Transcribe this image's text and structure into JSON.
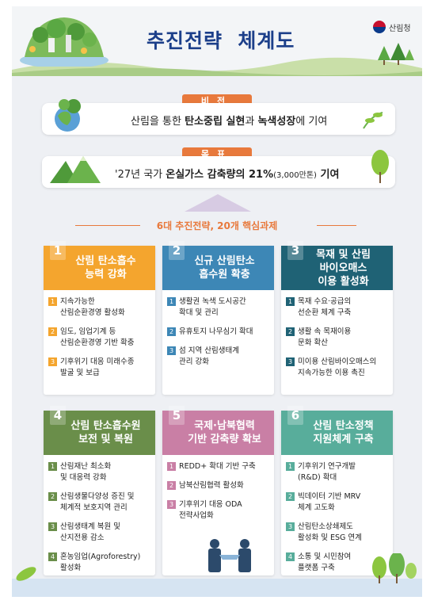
{
  "header": {
    "title": "추진전략  체계도",
    "logo_text": "산림청"
  },
  "vision": {
    "tag": "비전",
    "pre": "산림을 통한 ",
    "bold1": "탄소중립 실현",
    "mid": "과 ",
    "bold2": "녹색성장",
    "post": "에 기여"
  },
  "goal": {
    "tag": "목표",
    "pre": "'27년 국가 ",
    "bold1": "온실가스 감축량의 21%",
    "small": "(3,000만톤)",
    "bold2": " 기여"
  },
  "strategy_header": "6대 추진전략, 20개 핵심과제",
  "colors": {
    "orange": "#f4a52e",
    "blue": "#3d87b6",
    "teal": "#1f6275",
    "green": "#6a8e4a",
    "pink": "#c97fa5",
    "aqua": "#58ad9b",
    "accent": "#e8793c",
    "title": "#1c3f8a"
  },
  "strategies": [
    {
      "num": "1",
      "title": "산림 탄소흡수\n능력 강화",
      "color": "#f4a52e",
      "items": [
        {
          "n": "1",
          "text": "지속가능한\n산림순환경영 활성화"
        },
        {
          "n": "2",
          "text": "임도, 임업기계 등\n산림순환경영 기반 확충"
        },
        {
          "n": "3",
          "text": "기후위기 대응 미래수종\n발굴 및 보급"
        }
      ]
    },
    {
      "num": "2",
      "title": "신규 산림탄소\n흡수원 확충",
      "color": "#3d87b6",
      "items": [
        {
          "n": "1",
          "text": "생활권 녹색 도시공간\n확대 및 관리"
        },
        {
          "n": "2",
          "text": "유휴토지 나무심기 확대"
        },
        {
          "n": "3",
          "text": "섬 지역 산림생태계\n관리 강화"
        }
      ]
    },
    {
      "num": "3",
      "title": "목재 및 산림\n바이오매스\n이용 활성화",
      "color": "#1f6275",
      "items": [
        {
          "n": "1",
          "text": "목재 수요·공급의\n선순환 체계 구축"
        },
        {
          "n": "2",
          "text": "생활 속 목재이용\n문화 확산"
        },
        {
          "n": "3",
          "text": "미이용 산림바이오매스의\n지속가능한 이용 촉진"
        }
      ]
    },
    {
      "num": "4",
      "title": "산림 탄소흡수원\n보전 및 복원",
      "color": "#6a8e4a",
      "items": [
        {
          "n": "1",
          "text": "산림재난 최소화\n및 대응력 강화"
        },
        {
          "n": "2",
          "text": "산림생물다양성 증진 및\n체계적 보호지역 관리"
        },
        {
          "n": "3",
          "text": "산림생태계 복원 및\n산지전용 감소"
        },
        {
          "n": "4",
          "text": "혼농임업(Agroforestry)\n활성화"
        }
      ]
    },
    {
      "num": "5",
      "title": "국제·남북협력\n기반 감축량 확보",
      "color": "#c97fa5",
      "items": [
        {
          "n": "1",
          "text": "REDD+ 확대 기반 구축"
        },
        {
          "n": "2",
          "text": "남북산림협력 활성화"
        },
        {
          "n": "3",
          "text": "기후위기 대응 ODA\n전략사업화"
        }
      ]
    },
    {
      "num": "6",
      "title": "산림 탄소정책\n지원체계 구축",
      "color": "#58ad9b",
      "items": [
        {
          "n": "1",
          "text": "기후위기 연구개발\n(R&D) 확대"
        },
        {
          "n": "2",
          "text": "빅데이터 기반 MRV\n체계 고도화"
        },
        {
          "n": "3",
          "text": "산림탄소상쇄제도\n활성화 및 ESG 연계"
        },
        {
          "n": "4",
          "text": "소통 및 시민참여\n플랫폼 구축"
        }
      ]
    }
  ]
}
